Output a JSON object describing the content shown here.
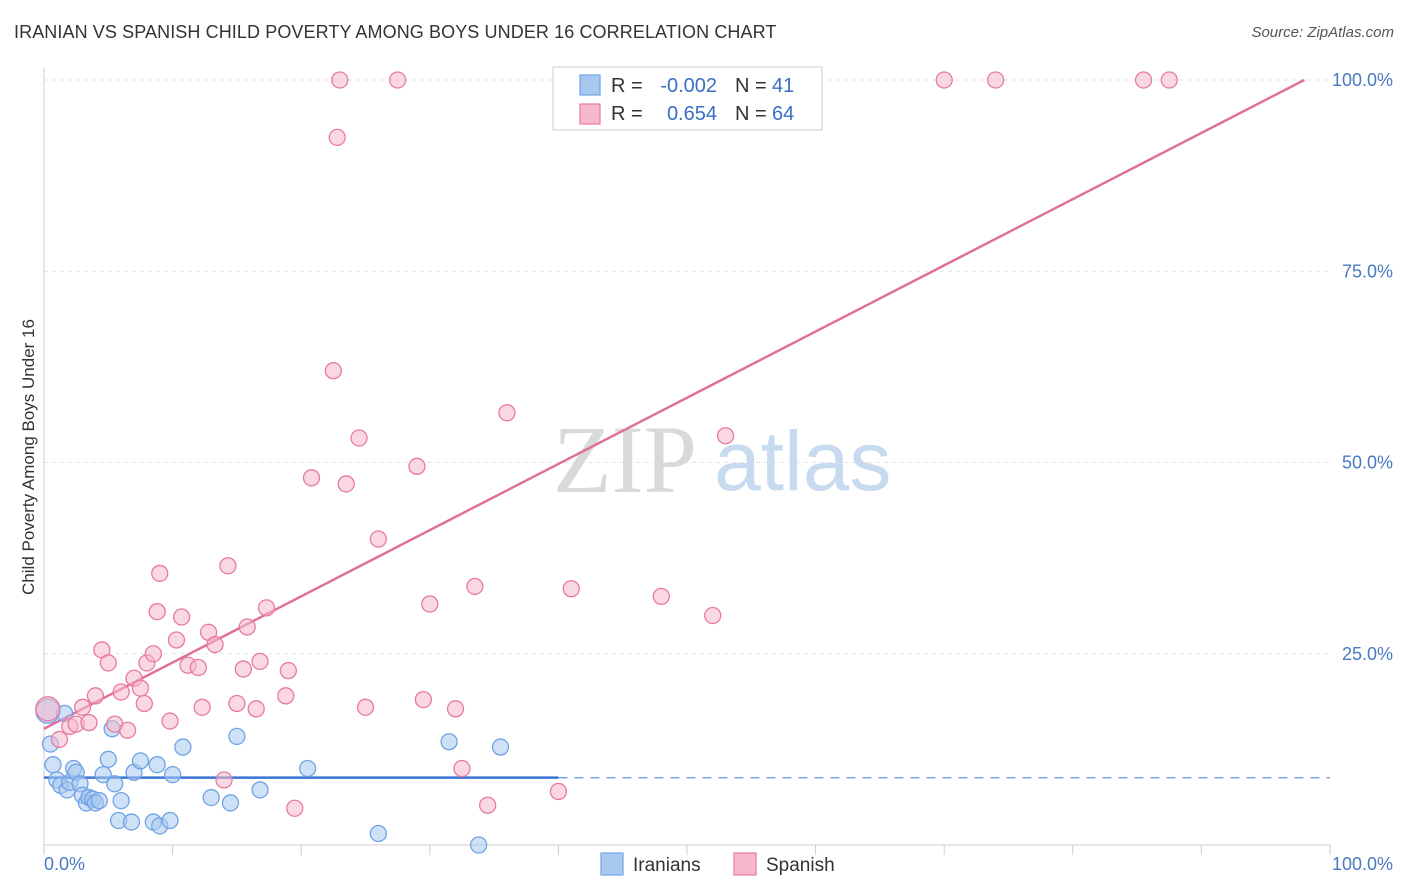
{
  "title": "IRANIAN VS SPANISH CHILD POVERTY AMONG BOYS UNDER 16 CORRELATION CHART",
  "source": "Source: ZipAtlas.com",
  "watermark": {
    "zip": "ZIP",
    "atlas": "atlas"
  },
  "legend": {
    "rows": [
      {
        "r_label": "R =",
        "r_value": "-0.002",
        "n_label": "N =",
        "n_value": "41",
        "color": "#a8c8f0"
      },
      {
        "r_label": "R =",
        "r_value": "0.654",
        "n_label": "N =",
        "n_value": "64",
        "color": "#f5b8cc"
      }
    ]
  },
  "bottom_legend": [
    {
      "label": "Iranians",
      "color": "#a8c8f0"
    },
    {
      "label": "Spanish",
      "color": "#f5b8cc"
    }
  ],
  "chart_data": {
    "type": "scatter",
    "title": "IRANIAN VS SPANISH CHILD POVERTY AMONG BOYS UNDER 16 CORRELATION CHART",
    "xlabel": "",
    "ylabel": "Child Poverty Among Boys Under 16",
    "xlim": [
      0,
      100
    ],
    "ylim": [
      0,
      100
    ],
    "x_tick_labels": [
      "0.0%",
      "100.0%"
    ],
    "y_ticks": [
      25,
      50,
      75,
      100
    ],
    "y_tick_labels": [
      "25.0%",
      "50.0%",
      "75.0%",
      "100.0%"
    ],
    "grid": true,
    "legend_position": "top-center",
    "series": [
      {
        "name": "Iranians",
        "color": "#6fa3e6",
        "fill": "#a8c8f0",
        "trend": {
          "x": [
            0,
            40
          ],
          "y": [
            8.8,
            8.8
          ],
          "dashed_extension_to": 100
        },
        "points": [
          [
            0.3,
            17.5
          ],
          [
            0.5,
            13.2
          ],
          [
            0.7,
            10.5
          ],
          [
            1.0,
            8.5
          ],
          [
            1.3,
            7.8
          ],
          [
            1.6,
            17.2
          ],
          [
            1.8,
            7.2
          ],
          [
            2.0,
            8.2
          ],
          [
            2.3,
            10.0
          ],
          [
            2.5,
            9.5
          ],
          [
            2.8,
            8.0
          ],
          [
            3.0,
            6.5
          ],
          [
            3.3,
            5.5
          ],
          [
            3.5,
            6.2
          ],
          [
            3.8,
            6.0
          ],
          [
            4.0,
            5.5
          ],
          [
            4.3,
            5.8
          ],
          [
            4.6,
            9.2
          ],
          [
            5.0,
            11.2
          ],
          [
            5.3,
            15.2
          ],
          [
            5.5,
            8.0
          ],
          [
            5.8,
            3.2
          ],
          [
            6.0,
            5.8
          ],
          [
            6.8,
            3.0
          ],
          [
            7.0,
            9.5
          ],
          [
            7.5,
            11.0
          ],
          [
            8.5,
            3.0
          ],
          [
            8.8,
            10.5
          ],
          [
            9.0,
            2.5
          ],
          [
            9.8,
            3.2
          ],
          [
            10.0,
            9.2
          ],
          [
            10.8,
            12.8
          ],
          [
            13.0,
            6.2
          ],
          [
            14.5,
            5.5
          ],
          [
            15.0,
            14.2
          ],
          [
            16.8,
            7.2
          ],
          [
            20.5,
            10.0
          ],
          [
            26.0,
            1.5
          ],
          [
            31.5,
            13.5
          ],
          [
            35.5,
            12.8
          ],
          [
            33.8,
            0
          ]
        ]
      },
      {
        "name": "Spanish",
        "color": "#e87a9e",
        "fill": "#f5b8cc",
        "trend": {
          "x": [
            0,
            98
          ],
          "y": [
            15.2,
            100
          ]
        },
        "points": [
          [
            0.3,
            17.8
          ],
          [
            1.2,
            13.8
          ],
          [
            2.0,
            15.5
          ],
          [
            2.5,
            15.8
          ],
          [
            3.0,
            18.0
          ],
          [
            3.5,
            16.0
          ],
          [
            4.0,
            19.5
          ],
          [
            4.5,
            25.5
          ],
          [
            5.0,
            23.8
          ],
          [
            5.5,
            15.8
          ],
          [
            6.0,
            20.0
          ],
          [
            6.5,
            15.0
          ],
          [
            7.0,
            21.8
          ],
          [
            7.5,
            20.5
          ],
          [
            7.8,
            18.5
          ],
          [
            8.0,
            23.8
          ],
          [
            8.5,
            25.0
          ],
          [
            8.8,
            30.5
          ],
          [
            9.0,
            35.5
          ],
          [
            9.8,
            16.2
          ],
          [
            10.3,
            26.8
          ],
          [
            10.7,
            29.8
          ],
          [
            11.2,
            23.5
          ],
          [
            12.0,
            23.2
          ],
          [
            12.3,
            18.0
          ],
          [
            12.8,
            27.8
          ],
          [
            13.3,
            26.2
          ],
          [
            14.0,
            8.5
          ],
          [
            14.3,
            36.5
          ],
          [
            15.0,
            18.5
          ],
          [
            15.5,
            23.0
          ],
          [
            15.8,
            28.5
          ],
          [
            16.5,
            17.8
          ],
          [
            16.8,
            24.0
          ],
          [
            17.3,
            31.0
          ],
          [
            18.8,
            19.5
          ],
          [
            19.0,
            22.8
          ],
          [
            19.5,
            4.8
          ],
          [
            20.8,
            48.0
          ],
          [
            22.5,
            62.0
          ],
          [
            22.8,
            92.5
          ],
          [
            23.0,
            100
          ],
          [
            23.5,
            47.2
          ],
          [
            24.5,
            53.2
          ],
          [
            25.0,
            18.0
          ],
          [
            26.0,
            40.0
          ],
          [
            27.5,
            100
          ],
          [
            29.0,
            49.5
          ],
          [
            29.5,
            19.0
          ],
          [
            30.0,
            31.5
          ],
          [
            32.0,
            17.8
          ],
          [
            32.5,
            10.0
          ],
          [
            33.5,
            33.8
          ],
          [
            34.5,
            5.2
          ],
          [
            36.0,
            56.5
          ],
          [
            40.0,
            7.0
          ],
          [
            41.0,
            33.5
          ],
          [
            48.0,
            32.5
          ],
          [
            52.0,
            30.0
          ],
          [
            53.0,
            53.5
          ],
          [
            70.0,
            100
          ],
          [
            74.0,
            100
          ],
          [
            85.5,
            100
          ],
          [
            87.5,
            100
          ]
        ]
      }
    ]
  }
}
